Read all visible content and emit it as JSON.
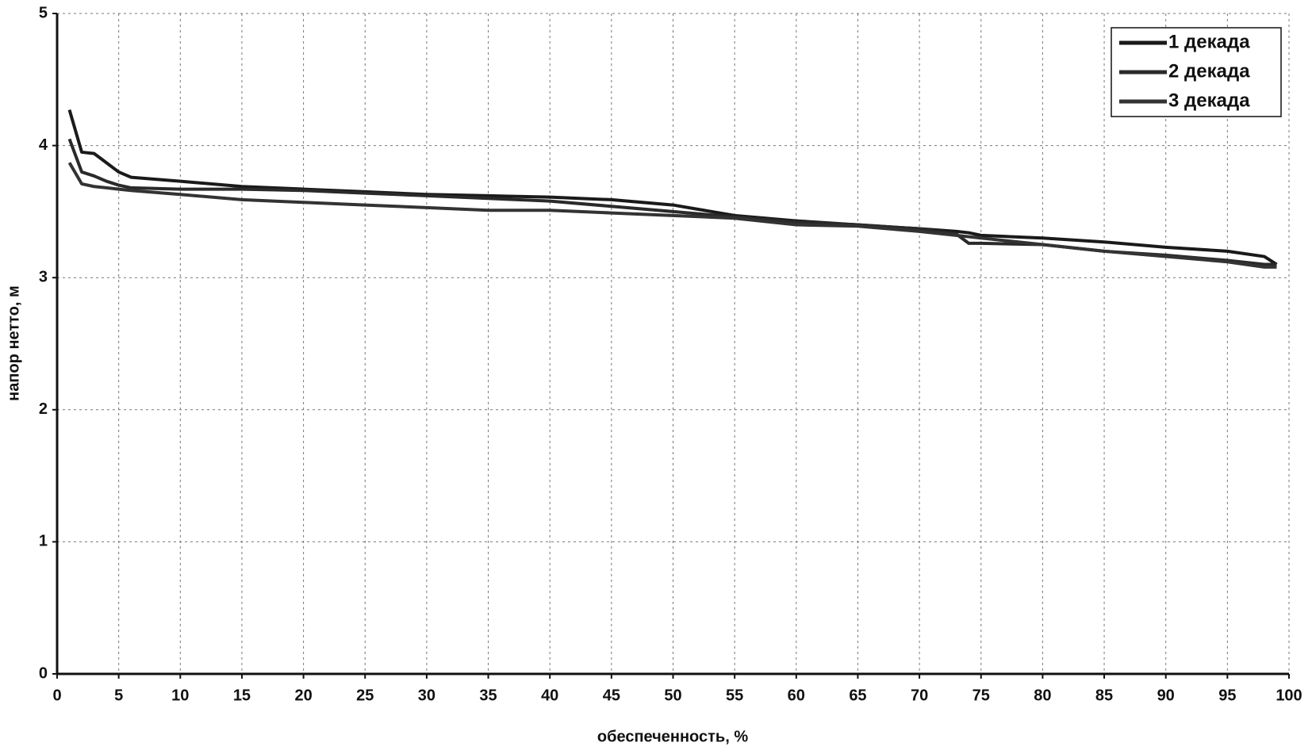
{
  "chart_data": {
    "type": "line",
    "xlabel": "обеспеченность, %",
    "ylabel": "напор нетто, м",
    "x": [
      1,
      2,
      3,
      4,
      5,
      6,
      10,
      15,
      20,
      25,
      30,
      35,
      40,
      45,
      50,
      55,
      60,
      65,
      70,
      73,
      74,
      75,
      80,
      85,
      90,
      95,
      98,
      99
    ],
    "series": [
      {
        "name": "1 декада",
        "color": "#1a1a1a",
        "values": [
          4.27,
          3.95,
          3.94,
          3.87,
          3.8,
          3.76,
          3.73,
          3.69,
          3.67,
          3.65,
          3.63,
          3.62,
          3.61,
          3.59,
          3.55,
          3.47,
          3.43,
          3.4,
          3.37,
          3.35,
          3.34,
          3.32,
          3.3,
          3.27,
          3.23,
          3.2,
          3.16,
          3.1
        ]
      },
      {
        "name": "2 декада",
        "color": "#2a2a2a",
        "values": [
          4.05,
          3.8,
          3.77,
          3.73,
          3.7,
          3.68,
          3.67,
          3.67,
          3.66,
          3.64,
          3.62,
          3.6,
          3.58,
          3.54,
          3.5,
          3.46,
          3.42,
          3.4,
          3.37,
          3.33,
          3.26,
          3.26,
          3.25,
          3.2,
          3.17,
          3.13,
          3.1,
          3.1
        ]
      },
      {
        "name": "3 декада",
        "color": "#333333",
        "values": [
          3.87,
          3.71,
          3.69,
          3.68,
          3.67,
          3.66,
          3.63,
          3.59,
          3.57,
          3.55,
          3.53,
          3.51,
          3.51,
          3.49,
          3.47,
          3.45,
          3.4,
          3.39,
          3.35,
          3.32,
          3.31,
          3.3,
          3.25,
          3.2,
          3.16,
          3.12,
          3.08,
          3.08
        ]
      }
    ],
    "xlim": [
      0,
      100
    ],
    "xticks": [
      0,
      5,
      10,
      15,
      20,
      25,
      30,
      35,
      40,
      45,
      50,
      55,
      60,
      65,
      70,
      75,
      80,
      85,
      90,
      95,
      100
    ],
    "ylim": [
      0,
      5
    ],
    "yticks": [
      0,
      1,
      2,
      3,
      4,
      5
    ],
    "grid": true,
    "legend": "top-right"
  }
}
